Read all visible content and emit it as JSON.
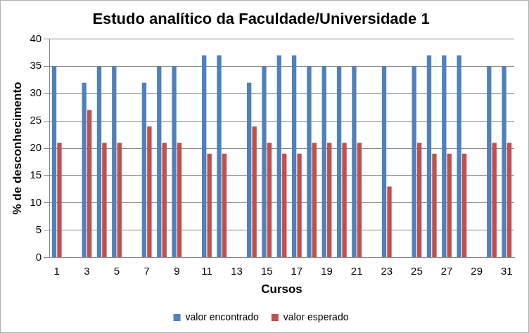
{
  "chart_data": {
    "type": "bar",
    "title": "Estudo analítico da Faculdade/Universidade 1",
    "x_label": "Cursos",
    "y_label": "% de desconhecimento",
    "categories": [
      1,
      null,
      3,
      null,
      5,
      null,
      7,
      null,
      9,
      null,
      11,
      null,
      13,
      null,
      15,
      null,
      17,
      null,
      19,
      null,
      21,
      null,
      23,
      null,
      25,
      null,
      27,
      null,
      29,
      null,
      31
    ],
    "series": [
      {
        "name": "valor encontrado",
        "color": "#4f81bd",
        "values": [
          35,
          null,
          32,
          35,
          35,
          null,
          32,
          35,
          35,
          null,
          37,
          37,
          null,
          32,
          35,
          37,
          37,
          35,
          35,
          35,
          35,
          null,
          35,
          null,
          35,
          37,
          37,
          37,
          null,
          35,
          35
        ]
      },
      {
        "name": "valor esperado",
        "color": "#c0504d",
        "values": [
          21,
          null,
          27,
          21,
          21,
          null,
          24,
          21,
          21,
          null,
          19,
          19,
          null,
          24,
          21,
          19,
          19,
          21,
          21,
          21,
          21,
          null,
          13,
          null,
          21,
          19,
          19,
          19,
          null,
          21,
          21
        ]
      }
    ],
    "ylim": [
      0,
      40
    ],
    "yticks": [
      0,
      5,
      10,
      15,
      20,
      25,
      30,
      35,
      40
    ],
    "grid": true,
    "legend": "bottom"
  }
}
